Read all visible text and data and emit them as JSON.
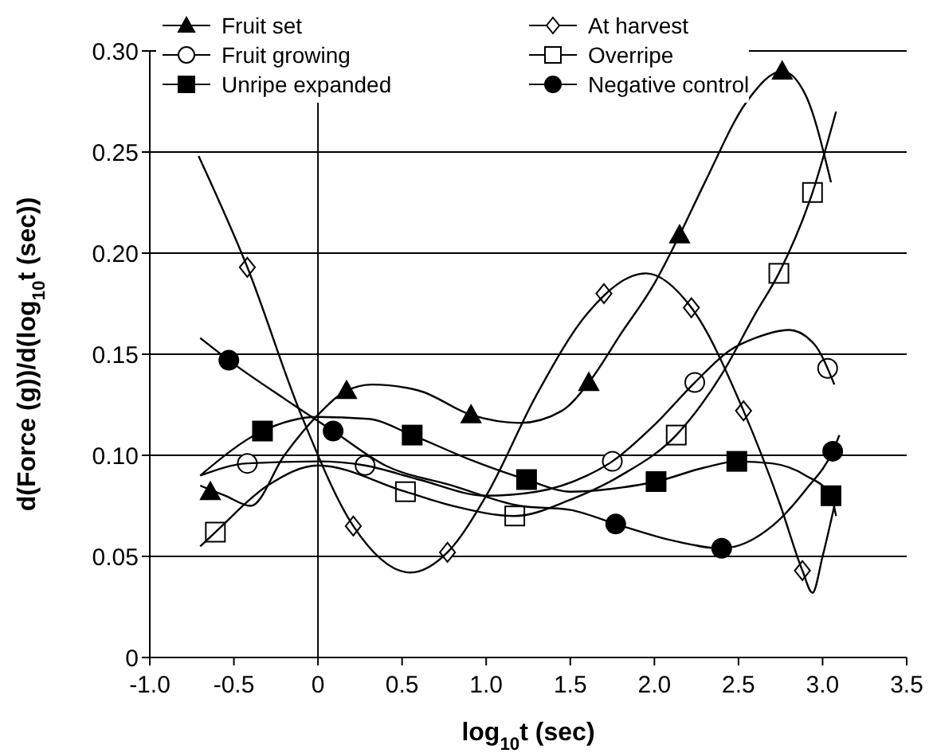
{
  "chart_data": {
    "type": "scatter",
    "xlabel": "log$_{10}$t (sec)",
    "ylabel": "d(Force (g))/d(log$_{10}$t (sec))",
    "xlim": [
      -1.0,
      3.5
    ],
    "ylim": [
      0,
      0.3
    ],
    "xticks": [
      {
        "value": -1.0,
        "label": "-1.0"
      },
      -0.5,
      0,
      0.5,
      {
        "value": 1.0,
        "label": "1.0"
      },
      1.5,
      {
        "value": 2.0,
        "label": "2.0"
      },
      2.5,
      {
        "value": 3.0,
        "label": "3.0"
      },
      3.5
    ],
    "yticks": [
      0,
      0.05,
      {
        "value": 0.1,
        "label": "0.10"
      },
      0.15,
      {
        "value": 0.2,
        "label": "0.20"
      },
      0.25,
      {
        "value": 0.3,
        "label": "0.30"
      }
    ],
    "grid": "y",
    "legend": "top left",
    "ref_lines": [
      {
        "axis": "x",
        "value": 0,
        "color": "#000000"
      }
    ],
    "series": [
      {
        "name": "Fruit set",
        "marker": "triangle",
        "color": "#000000",
        "x": [
          -0.64,
          0.17,
          0.91,
          1.61,
          2.15,
          2.76
        ],
        "values": [
          0.082,
          0.132,
          0.12,
          0.136,
          0.209,
          0.29
        ]
      },
      {
        "name": "Fruit growing",
        "marker": "circle",
        "color": "#ffffff",
        "x": [
          -0.42,
          0.28,
          1.75,
          2.24,
          3.03
        ],
        "values": [
          0.096,
          0.095,
          0.097,
          0.136,
          0.143
        ]
      },
      {
        "name": "Unripe expanded",
        "marker": "square",
        "color": "#000000",
        "x": [
          -0.33,
          0.56,
          1.24,
          2.01,
          2.49,
          3.05
        ],
        "values": [
          0.112,
          0.11,
          0.088,
          0.087,
          0.097,
          0.08
        ]
      },
      {
        "name": "At harvest",
        "marker": "diamond",
        "color": "#ffffff",
        "x": [
          -0.42,
          0.21,
          0.77,
          1.7,
          2.22,
          2.53,
          2.88
        ],
        "values": [
          0.193,
          0.065,
          0.052,
          0.18,
          0.173,
          0.122,
          0.043
        ]
      },
      {
        "name": "Overripe",
        "marker": "square",
        "color": "#ffffff",
        "x": [
          -0.61,
          0.52,
          1.17,
          2.13,
          2.74,
          2.94
        ],
        "values": [
          0.062,
          0.082,
          0.07,
          0.11,
          0.19,
          0.23
        ]
      },
      {
        "name": "Negative control",
        "marker": "circle",
        "color": "#000000",
        "x": [
          -0.53,
          0.09,
          1.77,
          2.4,
          3.06
        ],
        "values": [
          0.147,
          0.112,
          0.066,
          0.054,
          0.102
        ]
      },
      {
        "type": "line",
        "marker": "none",
        "color": "#000000",
        "x": [
          -0.7,
          -0.55,
          -0.4,
          -0.2,
          0.0,
          0.17,
          0.32,
          0.6,
          0.91,
          1.2,
          1.45,
          1.61,
          1.8,
          2.0,
          2.15,
          2.3,
          2.55,
          2.76,
          2.9,
          3.05
        ],
        "values": [
          0.085,
          0.08,
          0.075,
          0.1,
          0.12,
          0.132,
          0.135,
          0.132,
          0.12,
          0.116,
          0.122,
          0.136,
          0.16,
          0.185,
          0.209,
          0.235,
          0.275,
          0.29,
          0.278,
          0.235
        ]
      },
      {
        "type": "line",
        "marker": "none",
        "color": "#000000",
        "x": [
          -0.7,
          -0.42,
          0.0,
          0.28,
          0.6,
          1.0,
          1.3,
          1.6,
          1.75,
          2.0,
          2.24,
          2.45,
          2.6,
          2.8,
          2.95,
          3.07
        ],
        "values": [
          0.09,
          0.096,
          0.097,
          0.095,
          0.088,
          0.08,
          0.082,
          0.09,
          0.097,
          0.115,
          0.136,
          0.152,
          0.158,
          0.162,
          0.155,
          0.135
        ]
      },
      {
        "type": "line",
        "marker": "none",
        "color": "#000000",
        "x": [
          -0.7,
          -0.33,
          0.0,
          0.3,
          0.56,
          0.9,
          1.24,
          1.5,
          1.8,
          2.01,
          2.3,
          2.49,
          2.7,
          2.9,
          3.05,
          3.08
        ],
        "values": [
          0.09,
          0.112,
          0.119,
          0.118,
          0.11,
          0.098,
          0.088,
          0.082,
          0.084,
          0.087,
          0.094,
          0.097,
          0.096,
          0.09,
          0.08,
          0.07
        ]
      },
      {
        "type": "line",
        "marker": "none",
        "color": "#000000",
        "x": [
          -0.71,
          -0.42,
          -0.1,
          0.21,
          0.55,
          0.77,
          1.0,
          1.3,
          1.6,
          1.95,
          2.22,
          2.53,
          2.75,
          2.88,
          2.94,
          3.0,
          3.07
        ],
        "values": [
          0.248,
          0.193,
          0.12,
          0.065,
          0.042,
          0.052,
          0.08,
          0.13,
          0.17,
          0.19,
          0.173,
          0.122,
          0.075,
          0.043,
          0.032,
          0.05,
          0.075
        ]
      },
      {
        "type": "line",
        "marker": "none",
        "color": "#000000",
        "x": [
          -0.7,
          -0.61,
          -0.3,
          0.0,
          0.52,
          0.8,
          1.17,
          1.5,
          1.8,
          2.13,
          2.4,
          2.6,
          2.74,
          2.94,
          3.08
        ],
        "values": [
          0.055,
          0.062,
          0.085,
          0.095,
          0.082,
          0.075,
          0.07,
          0.078,
          0.09,
          0.11,
          0.14,
          0.17,
          0.19,
          0.23,
          0.27
        ]
      },
      {
        "type": "line",
        "marker": "none",
        "color": "#000000",
        "x": [
          -0.7,
          -0.53,
          -0.2,
          0.09,
          0.4,
          0.8,
          1.2,
          1.5,
          1.77,
          2.1,
          2.4,
          2.7,
          2.9,
          3.06,
          3.1
        ],
        "values": [
          0.158,
          0.147,
          0.128,
          0.112,
          0.095,
          0.085,
          0.075,
          0.073,
          0.066,
          0.058,
          0.054,
          0.065,
          0.083,
          0.102,
          0.11
        ]
      }
    ]
  }
}
